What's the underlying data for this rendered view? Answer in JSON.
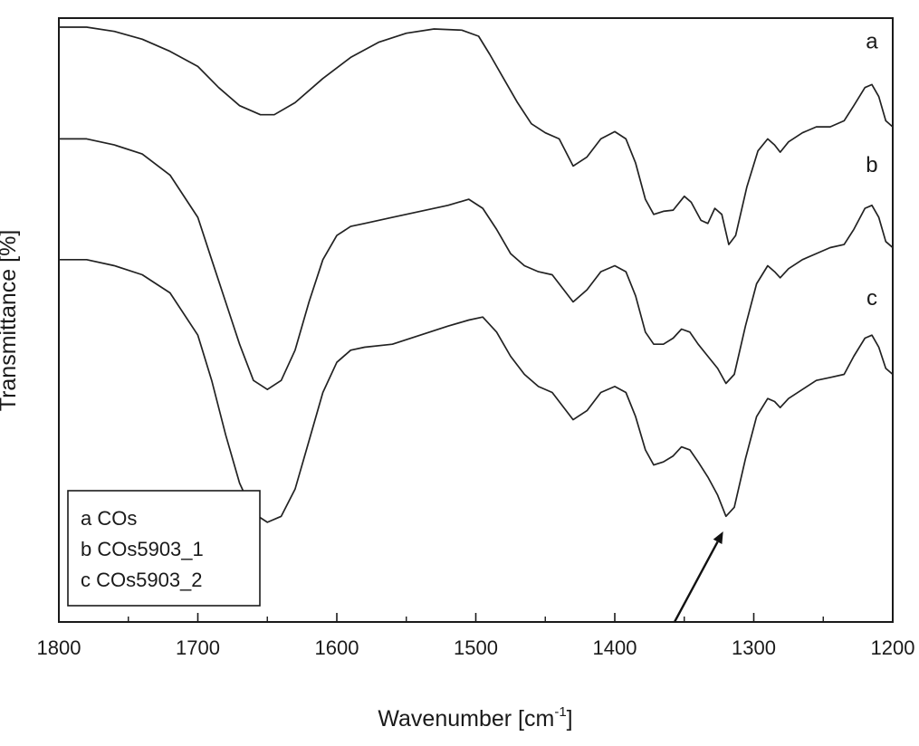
{
  "chart_data": {
    "type": "line",
    "title": "",
    "xlabel": "Wavenumber [cm",
    "xlabel_sup": "-1",
    "xlabel_suffix": "]",
    "ylabel": "Transmittance [%]",
    "xlim": [
      1800,
      1200
    ],
    "x_reversed": true,
    "xticks": [
      1800,
      1700,
      1600,
      1500,
      1400,
      1300,
      1200
    ],
    "y_ticks_shown": false,
    "ylim": [
      0,
      1
    ],
    "grid": false,
    "legend_position": "bottom-left",
    "legend": [
      "a COs",
      "b COs5903_1",
      "c COs5903_2"
    ],
    "annotation": {
      "type": "arrow",
      "from": [
        1357,
        0.0
      ],
      "to": [
        1322,
        0.15
      ]
    },
    "series": [
      {
        "name": "a",
        "label_at": [
          1215,
          0.95
        ],
        "points": [
          [
            1800,
            0.985
          ],
          [
            1780,
            0.985
          ],
          [
            1760,
            0.978
          ],
          [
            1740,
            0.965
          ],
          [
            1720,
            0.945
          ],
          [
            1700,
            0.92
          ],
          [
            1685,
            0.885
          ],
          [
            1670,
            0.855
          ],
          [
            1655,
            0.84
          ],
          [
            1645,
            0.84
          ],
          [
            1630,
            0.86
          ],
          [
            1610,
            0.9
          ],
          [
            1590,
            0.935
          ],
          [
            1570,
            0.96
          ],
          [
            1550,
            0.975
          ],
          [
            1530,
            0.982
          ],
          [
            1510,
            0.98
          ],
          [
            1498,
            0.97
          ],
          [
            1490,
            0.94
          ],
          [
            1480,
            0.9
          ],
          [
            1470,
            0.86
          ],
          [
            1460,
            0.825
          ],
          [
            1450,
            0.81
          ],
          [
            1440,
            0.8
          ],
          [
            1430,
            0.755
          ],
          [
            1420,
            0.77
          ],
          [
            1410,
            0.8
          ],
          [
            1400,
            0.812
          ],
          [
            1392,
            0.8
          ],
          [
            1385,
            0.76
          ],
          [
            1378,
            0.7
          ],
          [
            1372,
            0.675
          ],
          [
            1365,
            0.68
          ],
          [
            1358,
            0.682
          ],
          [
            1350,
            0.705
          ],
          [
            1345,
            0.695
          ],
          [
            1338,
            0.665
          ],
          [
            1333,
            0.66
          ],
          [
            1328,
            0.685
          ],
          [
            1323,
            0.675
          ],
          [
            1318,
            0.625
          ],
          [
            1313,
            0.64
          ],
          [
            1305,
            0.72
          ],
          [
            1297,
            0.78
          ],
          [
            1290,
            0.8
          ],
          [
            1285,
            0.79
          ],
          [
            1281,
            0.778
          ],
          [
            1275,
            0.795
          ],
          [
            1265,
            0.81
          ],
          [
            1255,
            0.82
          ],
          [
            1245,
            0.82
          ],
          [
            1235,
            0.83
          ],
          [
            1228,
            0.855
          ],
          [
            1220,
            0.885
          ],
          [
            1215,
            0.89
          ],
          [
            1210,
            0.87
          ],
          [
            1205,
            0.83
          ],
          [
            1200,
            0.82
          ]
        ]
      },
      {
        "name": "b",
        "label_at": [
          1215,
          0.745
        ],
        "points": [
          [
            1800,
            0.8
          ],
          [
            1780,
            0.8
          ],
          [
            1760,
            0.79
          ],
          [
            1740,
            0.775
          ],
          [
            1720,
            0.74
          ],
          [
            1700,
            0.67
          ],
          [
            1690,
            0.6
          ],
          [
            1680,
            0.53
          ],
          [
            1670,
            0.46
          ],
          [
            1660,
            0.4
          ],
          [
            1650,
            0.385
          ],
          [
            1640,
            0.4
          ],
          [
            1630,
            0.45
          ],
          [
            1620,
            0.53
          ],
          [
            1610,
            0.6
          ],
          [
            1600,
            0.64
          ],
          [
            1590,
            0.655
          ],
          [
            1580,
            0.66
          ],
          [
            1560,
            0.67
          ],
          [
            1540,
            0.68
          ],
          [
            1520,
            0.69
          ],
          [
            1505,
            0.7
          ],
          [
            1495,
            0.685
          ],
          [
            1485,
            0.65
          ],
          [
            1475,
            0.61
          ],
          [
            1465,
            0.59
          ],
          [
            1455,
            0.58
          ],
          [
            1445,
            0.575
          ],
          [
            1430,
            0.53
          ],
          [
            1420,
            0.55
          ],
          [
            1410,
            0.58
          ],
          [
            1400,
            0.59
          ],
          [
            1392,
            0.58
          ],
          [
            1385,
            0.54
          ],
          [
            1378,
            0.48
          ],
          [
            1372,
            0.46
          ],
          [
            1365,
            0.46
          ],
          [
            1358,
            0.47
          ],
          [
            1352,
            0.485
          ],
          [
            1346,
            0.48
          ],
          [
            1340,
            0.46
          ],
          [
            1333,
            0.44
          ],
          [
            1326,
            0.42
          ],
          [
            1320,
            0.395
          ],
          [
            1314,
            0.41
          ],
          [
            1306,
            0.49
          ],
          [
            1298,
            0.56
          ],
          [
            1290,
            0.59
          ],
          [
            1285,
            0.58
          ],
          [
            1281,
            0.57
          ],
          [
            1275,
            0.585
          ],
          [
            1265,
            0.6
          ],
          [
            1255,
            0.61
          ],
          [
            1245,
            0.62
          ],
          [
            1235,
            0.625
          ],
          [
            1228,
            0.65
          ],
          [
            1220,
            0.685
          ],
          [
            1215,
            0.69
          ],
          [
            1210,
            0.67
          ],
          [
            1205,
            0.63
          ],
          [
            1200,
            0.62
          ]
        ]
      },
      {
        "name": "c",
        "label_at": [
          1215,
          0.525
        ],
        "points": [
          [
            1800,
            0.6
          ],
          [
            1780,
            0.6
          ],
          [
            1760,
            0.59
          ],
          [
            1740,
            0.575
          ],
          [
            1720,
            0.545
          ],
          [
            1700,
            0.475
          ],
          [
            1690,
            0.4
          ],
          [
            1680,
            0.31
          ],
          [
            1670,
            0.23
          ],
          [
            1660,
            0.18
          ],
          [
            1650,
            0.165
          ],
          [
            1640,
            0.175
          ],
          [
            1630,
            0.22
          ],
          [
            1620,
            0.3
          ],
          [
            1610,
            0.38
          ],
          [
            1600,
            0.43
          ],
          [
            1590,
            0.45
          ],
          [
            1580,
            0.455
          ],
          [
            1560,
            0.46
          ],
          [
            1540,
            0.475
          ],
          [
            1520,
            0.49
          ],
          [
            1505,
            0.5
          ],
          [
            1495,
            0.505
          ],
          [
            1485,
            0.48
          ],
          [
            1475,
            0.44
          ],
          [
            1465,
            0.41
          ],
          [
            1455,
            0.39
          ],
          [
            1445,
            0.38
          ],
          [
            1430,
            0.335
          ],
          [
            1420,
            0.35
          ],
          [
            1410,
            0.38
          ],
          [
            1400,
            0.39
          ],
          [
            1392,
            0.38
          ],
          [
            1385,
            0.34
          ],
          [
            1378,
            0.285
          ],
          [
            1372,
            0.26
          ],
          [
            1365,
            0.265
          ],
          [
            1358,
            0.275
          ],
          [
            1352,
            0.29
          ],
          [
            1346,
            0.285
          ],
          [
            1340,
            0.265
          ],
          [
            1333,
            0.24
          ],
          [
            1326,
            0.21
          ],
          [
            1320,
            0.175
          ],
          [
            1314,
            0.19
          ],
          [
            1306,
            0.27
          ],
          [
            1298,
            0.34
          ],
          [
            1290,
            0.37
          ],
          [
            1285,
            0.365
          ],
          [
            1281,
            0.355
          ],
          [
            1275,
            0.37
          ],
          [
            1265,
            0.385
          ],
          [
            1255,
            0.4
          ],
          [
            1245,
            0.405
          ],
          [
            1235,
            0.41
          ],
          [
            1228,
            0.44
          ],
          [
            1220,
            0.47
          ],
          [
            1215,
            0.475
          ],
          [
            1210,
            0.455
          ],
          [
            1205,
            0.42
          ],
          [
            1200,
            0.41
          ]
        ]
      }
    ]
  }
}
